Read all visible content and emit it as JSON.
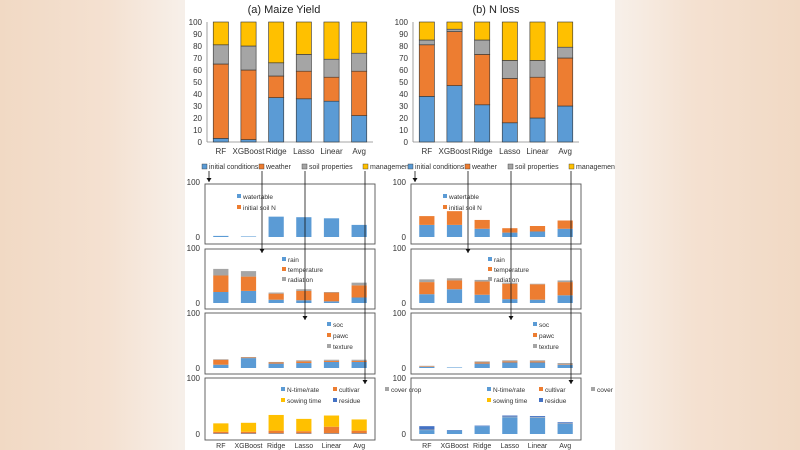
{
  "colors": {
    "initial_conditions": "#5b9bd5",
    "weather": "#ed7d31",
    "soil_properties": "#a5a5a5",
    "management": "#ffc000",
    "watertable": "#5b9bd5",
    "initial_soil_n": "#ed7d31",
    "rain": "#5b9bd5",
    "temperature": "#ed7d31",
    "radiation": "#a5a5a5",
    "soc": "#5b9bd5",
    "pawc": "#ed7d31",
    "texture": "#a5a5a5",
    "n_time_rate": "#5b9bd5",
    "cultivar": "#ed7d31",
    "cover_crop": "#a5a5a5",
    "sowing_time": "#ffc000",
    "residue": "#4472c4"
  },
  "chart_data": [
    {
      "id": "a",
      "type": "bar",
      "stacked": true,
      "title": "(a) Maize Yield",
      "categories": [
        "RF",
        "XGBoost",
        "Ridge",
        "Lasso",
        "Linear",
        "Avg"
      ],
      "yticks": [
        "0",
        "10",
        "20",
        "30",
        "40",
        "50",
        "60",
        "70",
        "80",
        "90",
        "100"
      ],
      "ylim": [
        0,
        100
      ],
      "series": [
        {
          "name": "initial conditions",
          "key": "initial_conditions",
          "values": [
            3,
            2,
            37,
            36,
            34,
            22
          ]
        },
        {
          "name": "weather",
          "key": "weather",
          "values": [
            62,
            58,
            18,
            23,
            20,
            37
          ]
        },
        {
          "name": "soil properties",
          "key": "soil_properties",
          "values": [
            16,
            20,
            11,
            14,
            15,
            15
          ]
        },
        {
          "name": "management",
          "key": "management",
          "values": [
            19,
            20,
            34,
            27,
            31,
            26
          ]
        }
      ],
      "legend": [
        "initial conditions",
        "weather",
        "soil properties",
        "management"
      ],
      "subpanels": [
        {
          "ylim": [
            0,
            100
          ],
          "yticks": [
            "0",
            "100"
          ],
          "series": [
            {
              "name": "watertable",
              "key": "watertable",
              "values": [
                2,
                1,
                37,
                36,
                34,
                22
              ]
            },
            {
              "name": "initial soil N",
              "key": "initial_soil_n",
              "values": [
                0,
                0,
                0,
                0,
                0,
                0
              ]
            }
          ],
          "legend": [
            "watertable",
            "initial soil N"
          ]
        },
        {
          "ylim": [
            0,
            100
          ],
          "yticks": [
            "0",
            "100"
          ],
          "series": [
            {
              "name": "rain",
              "key": "rain",
              "values": [
                20,
                22,
                6,
                5,
                3,
                10
              ]
            },
            {
              "name": "temperature",
              "key": "temperature",
              "values": [
                30,
                26,
                11,
                17,
                16,
                22
              ]
            },
            {
              "name": "radiation",
              "key": "radiation",
              "values": [
                12,
                10,
                2,
                3,
                1,
                5
              ]
            }
          ],
          "legend": [
            "rain",
            "temperature",
            "radiation"
          ]
        },
        {
          "ylim": [
            0,
            100
          ],
          "yticks": [
            "0",
            "100"
          ],
          "series": [
            {
              "name": "soc",
              "key": "soc",
              "values": [
                6,
                18,
                8,
                9,
                11,
                11
              ]
            },
            {
              "name": "pawc",
              "key": "pawc",
              "values": [
                9,
                1,
                2,
                3,
                2,
                2
              ]
            },
            {
              "name": "texture",
              "key": "texture",
              "values": [
                1,
                1,
                1,
                2,
                2,
                2
              ]
            }
          ],
          "legend": [
            "soc",
            "pawc",
            "texture"
          ]
        },
        {
          "ylim": [
            0,
            100
          ],
          "yticks": [
            "0",
            "100"
          ],
          "series": [
            {
              "name": "N-time/rate",
              "key": "n_time_rate",
              "values": [
                1,
                1,
                1,
                1,
                1,
                1
              ]
            },
            {
              "name": "cultivar",
              "key": "cultivar",
              "values": [
                3,
                3,
                5,
                4,
                12,
                5
              ]
            },
            {
              "name": "cover crop",
              "key": "cover_crop",
              "values": [
                0,
                0,
                0,
                0,
                0,
                0
              ]
            },
            {
              "name": "sowing time",
              "key": "sowing_time",
              "values": [
                15,
                16,
                28,
                22,
                20,
                20
              ]
            },
            {
              "name": "residue",
              "key": "residue",
              "values": [
                0,
                0,
                0,
                0,
                0,
                0
              ]
            }
          ],
          "legend": [
            "N-time/rate",
            "cultivar",
            "cover crop",
            "sowing time",
            "residue"
          ]
        }
      ]
    },
    {
      "id": "b",
      "type": "bar",
      "stacked": true,
      "title": "(b) N loss",
      "categories": [
        "RF",
        "XGBoost",
        "Ridge",
        "Lasso",
        "Linear",
        "Avg"
      ],
      "yticks": [
        "0",
        "10",
        "20",
        "30",
        "40",
        "50",
        "60",
        "70",
        "80",
        "90",
        "100"
      ],
      "ylim": [
        0,
        100
      ],
      "series": [
        {
          "name": "initial conditions",
          "key": "initial_conditions",
          "values": [
            38,
            47,
            31,
            16,
            20,
            30
          ]
        },
        {
          "name": "weather",
          "key": "weather",
          "values": [
            43,
            45,
            42,
            37,
            34,
            40
          ]
        },
        {
          "name": "soil properties",
          "key": "soil_properties",
          "values": [
            4,
            2,
            12,
            15,
            14,
            9
          ]
        },
        {
          "name": "management",
          "key": "management",
          "values": [
            15,
            6,
            15,
            32,
            32,
            21
          ]
        }
      ],
      "legend": [
        "initial conditions",
        "weather",
        "soil properties",
        "management"
      ],
      "subpanels": [
        {
          "ylim": [
            0,
            100
          ],
          "yticks": [
            "0",
            "100"
          ],
          "series": [
            {
              "name": "watertable",
              "key": "watertable",
              "values": [
                22,
                22,
                15,
                8,
                10,
                15
              ]
            },
            {
              "name": "initial soil N",
              "key": "initial_soil_n",
              "values": [
                16,
                25,
                16,
                8,
                10,
                15
              ]
            }
          ],
          "legend": [
            "watertable",
            "initial soil N"
          ]
        },
        {
          "ylim": [
            0,
            100
          ],
          "yticks": [
            "0",
            "100"
          ],
          "series": [
            {
              "name": "rain",
              "key": "rain",
              "values": [
                16,
                25,
                15,
                7,
                6,
                14
              ]
            },
            {
              "name": "temperature",
              "key": "temperature",
              "values": [
                22,
                16,
                24,
                28,
                28,
                24
              ]
            },
            {
              "name": "radiation",
              "key": "radiation",
              "values": [
                5,
                4,
                3,
                2,
                1,
                3
              ]
            }
          ],
          "legend": [
            "rain",
            "temperature",
            "radiation"
          ]
        },
        {
          "ylim": [
            0,
            100
          ],
          "yticks": [
            "0",
            "100"
          ],
          "series": [
            {
              "name": "soc",
              "key": "soc",
              "values": [
                2,
                1,
                8,
                10,
                10,
                6
              ]
            },
            {
              "name": "pawc",
              "key": "pawc",
              "values": [
                1,
                0,
                2,
                2,
                2,
                1
              ]
            },
            {
              "name": "texture",
              "key": "texture",
              "values": [
                1,
                0,
                2,
                2,
                2,
                2
              ]
            }
          ],
          "legend": [
            "soc",
            "pawc",
            "texture"
          ]
        },
        {
          "ylim": [
            0,
            100
          ],
          "yticks": [
            "0",
            "100"
          ],
          "series": [
            {
              "name": "N-time/rate",
              "key": "n_time_rate",
              "values": [
                7,
                6,
                14,
                30,
                29,
                18
              ]
            },
            {
              "name": "cultivar",
              "key": "cultivar",
              "values": [
                0,
                0,
                0,
                0,
                0,
                0
              ]
            },
            {
              "name": "cover crop",
              "key": "cover_crop",
              "values": [
                1,
                0,
                0,
                1,
                1,
                1
              ]
            },
            {
              "name": "sowing time",
              "key": "sowing_time",
              "values": [
                0,
                0,
                0,
                0,
                0,
                0
              ]
            },
            {
              "name": "residue",
              "key": "residue",
              "values": [
                6,
                1,
                1,
                2,
                2,
                2
              ]
            }
          ],
          "legend": [
            "N-time/rate",
            "cultivar",
            "cover crop",
            "sowing time",
            "residue"
          ]
        }
      ]
    }
  ]
}
